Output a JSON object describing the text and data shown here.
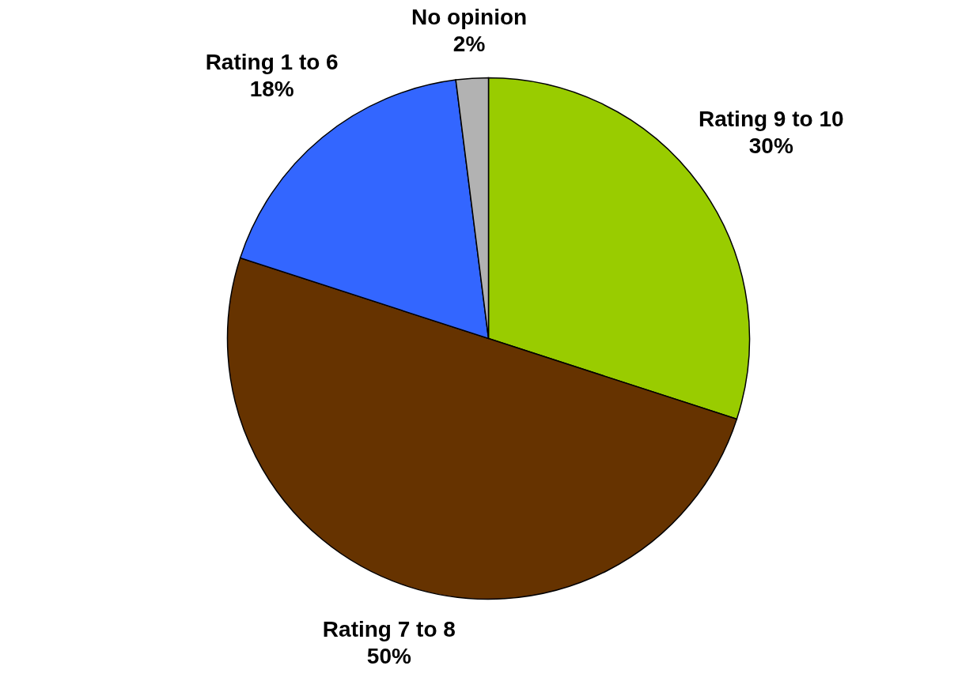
{
  "chart_data": {
    "type": "pie",
    "categories": [
      "Rating 9 to 10",
      "Rating 7 to 8",
      "Rating 1 to 6",
      "No opinion"
    ],
    "values": [
      30,
      50,
      18,
      2
    ],
    "colors": [
      "#99cc00",
      "#663300",
      "#3366ff",
      "#b2b2b2"
    ],
    "value_labels": [
      "30%",
      "50%",
      "18%",
      "2%"
    ]
  }
}
